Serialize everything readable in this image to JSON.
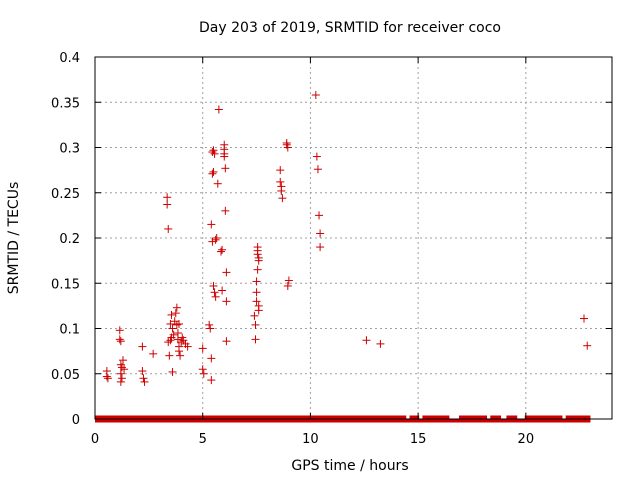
{
  "chart_data": {
    "type": "scatter",
    "title": "Day 203 of 2019, SRMTID for receiver coco",
    "xlabel": "GPS time / hours",
    "ylabel": "SRMTID / TECUs",
    "xlim": [
      0,
      24
    ],
    "ylim": [
      0,
      0.4
    ],
    "xticks": [
      0,
      5,
      10,
      15,
      20
    ],
    "yticks": [
      0,
      0.05,
      0.1,
      0.15,
      0.2,
      0.25,
      0.3,
      0.35,
      0.4
    ],
    "xtick_labels": [
      "0",
      "5",
      "10",
      "15",
      "20"
    ],
    "ytick_labels": [
      "0",
      "0.05",
      "0.1",
      "0.15",
      "0.2",
      "0.25",
      "0.3",
      "0.35",
      "0.4"
    ],
    "grid": true,
    "marker": "+",
    "color": "#cc0000",
    "zero_band": [
      0,
      23
    ],
    "points": [
      [
        0.55,
        0.053
      ],
      [
        0.55,
        0.047
      ],
      [
        0.6,
        0.045
      ],
      [
        1.15,
        0.098
      ],
      [
        1.15,
        0.088
      ],
      [
        1.2,
        0.086
      ],
      [
        1.2,
        0.06
      ],
      [
        1.25,
        0.057
      ],
      [
        1.3,
        0.065
      ],
      [
        1.2,
        0.05
      ],
      [
        1.25,
        0.045
      ],
      [
        1.2,
        0.041
      ],
      [
        1.35,
        0.055
      ],
      [
        2.2,
        0.08
      ],
      [
        2.2,
        0.053
      ],
      [
        2.25,
        0.045
      ],
      [
        2.3,
        0.041
      ],
      [
        2.7,
        0.072
      ],
      [
        3.35,
        0.245
      ],
      [
        3.35,
        0.237
      ],
      [
        3.4,
        0.21
      ],
      [
        3.4,
        0.085
      ],
      [
        3.45,
        0.07
      ],
      [
        3.5,
        0.087
      ],
      [
        3.55,
        0.09
      ],
      [
        3.5,
        0.105
      ],
      [
        3.55,
        0.115
      ],
      [
        3.6,
        0.1
      ],
      [
        3.6,
        0.052
      ],
      [
        3.65,
        0.093
      ],
      [
        3.7,
        0.108
      ],
      [
        3.75,
        0.117
      ],
      [
        3.8,
        0.123
      ],
      [
        3.8,
        0.104
      ],
      [
        3.85,
        0.095
      ],
      [
        3.85,
        0.088
      ],
      [
        3.9,
        0.08
      ],
      [
        3.9,
        0.075
      ],
      [
        3.95,
        0.07
      ],
      [
        3.9,
        0.105
      ],
      [
        4.0,
        0.085
      ],
      [
        4.05,
        0.09
      ],
      [
        4.1,
        0.087
      ],
      [
        4.2,
        0.083
      ],
      [
        4.3,
        0.08
      ],
      [
        5.0,
        0.078
      ],
      [
        5.0,
        0.055
      ],
      [
        5.05,
        0.05
      ],
      [
        5.3,
        0.104
      ],
      [
        5.35,
        0.1
      ],
      [
        5.4,
        0.067
      ],
      [
        5.4,
        0.043
      ],
      [
        5.45,
        0.295
      ],
      [
        5.5,
        0.297
      ],
      [
        5.55,
        0.293
      ],
      [
        5.45,
        0.271
      ],
      [
        5.5,
        0.273
      ],
      [
        5.4,
        0.215
      ],
      [
        5.45,
        0.196
      ],
      [
        5.6,
        0.198
      ],
      [
        5.65,
        0.2
      ],
      [
        5.7,
        0.26
      ],
      [
        5.5,
        0.147
      ],
      [
        5.55,
        0.14
      ],
      [
        5.6,
        0.135
      ],
      [
        5.75,
        0.342
      ],
      [
        5.85,
        0.185
      ],
      [
        5.9,
        0.187
      ],
      [
        5.9,
        0.142
      ],
      [
        6.0,
        0.303
      ],
      [
        6.0,
        0.298
      ],
      [
        6.0,
        0.293
      ],
      [
        6.0,
        0.29
      ],
      [
        6.05,
        0.277
      ],
      [
        6.05,
        0.23
      ],
      [
        6.1,
        0.162
      ],
      [
        6.1,
        0.13
      ],
      [
        6.1,
        0.086
      ],
      [
        7.4,
        0.114
      ],
      [
        7.45,
        0.104
      ],
      [
        7.45,
        0.088
      ],
      [
        7.5,
        0.13
      ],
      [
        7.5,
        0.14
      ],
      [
        7.5,
        0.152
      ],
      [
        7.55,
        0.186
      ],
      [
        7.55,
        0.182
      ],
      [
        7.6,
        0.178
      ],
      [
        7.6,
        0.175
      ],
      [
        7.55,
        0.19
      ],
      [
        7.55,
        0.165
      ],
      [
        7.6,
        0.125
      ],
      [
        7.6,
        0.12
      ],
      [
        8.6,
        0.275
      ],
      [
        8.6,
        0.262
      ],
      [
        8.65,
        0.257
      ],
      [
        8.65,
        0.252
      ],
      [
        8.7,
        0.244
      ],
      [
        8.9,
        0.305
      ],
      [
        8.9,
        0.303
      ],
      [
        8.95,
        0.3
      ],
      [
        8.95,
        0.147
      ],
      [
        9.0,
        0.153
      ],
      [
        10.25,
        0.358
      ],
      [
        10.3,
        0.29
      ],
      [
        10.35,
        0.276
      ],
      [
        10.4,
        0.225
      ],
      [
        10.45,
        0.205
      ],
      [
        10.45,
        0.19
      ],
      [
        12.6,
        0.087
      ],
      [
        13.25,
        0.083
      ],
      [
        22.7,
        0.111
      ],
      [
        22.85,
        0.081
      ]
    ]
  }
}
